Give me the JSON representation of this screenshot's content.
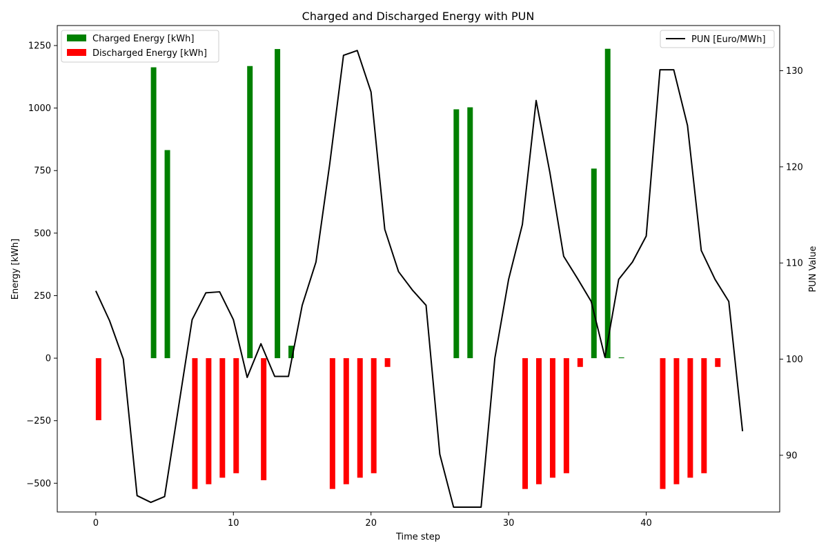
{
  "chart_data": {
    "type": "bar",
    "title": "Charged and Discharged Energy with PUN",
    "xlabel": "Time step",
    "ylabel": "Energy [kWh]",
    "ylabel_right": "PUN Value",
    "x": [
      0,
      1,
      2,
      3,
      4,
      5,
      6,
      7,
      8,
      9,
      10,
      11,
      12,
      13,
      14,
      15,
      16,
      17,
      18,
      19,
      20,
      21,
      22,
      23,
      24,
      25,
      26,
      27,
      28,
      29,
      30,
      31,
      32,
      33,
      34,
      35,
      36,
      37,
      38,
      39,
      40,
      41,
      42,
      43,
      44,
      45,
      46,
      47
    ],
    "xlim": [
      -2.8,
      49.7
    ],
    "ylim": [
      -615,
      1330
    ],
    "ylim_right": [
      84.1,
      134.7
    ],
    "xticks": [
      0,
      10,
      20,
      30,
      40
    ],
    "yticks": [
      -500,
      -250,
      0,
      250,
      500,
      750,
      1000,
      1250
    ],
    "yticks_right": [
      90,
      100,
      110,
      120,
      130
    ],
    "bar_series": [
      {
        "name": "Charged Energy [kWh]",
        "color": "#008000",
        "values": [
          0,
          0,
          0,
          0,
          1163,
          832,
          0,
          0,
          0,
          0,
          0,
          1168,
          0,
          1236,
          50,
          0,
          0,
          0,
          0,
          0,
          0,
          0,
          0,
          0,
          0,
          0,
          995,
          1003,
          0,
          0,
          0,
          0,
          0,
          0,
          0,
          0,
          758,
          1237,
          3,
          0,
          0,
          0,
          0,
          0,
          0,
          0,
          0,
          0
        ]
      },
      {
        "name": "Discharged Energy [kWh]",
        "color": "#ff0000",
        "values": [
          -248,
          0,
          0,
          0,
          0,
          0,
          0,
          -523,
          -504,
          -478,
          -460,
          0,
          -488,
          0,
          0,
          0,
          0,
          -523,
          -504,
          -478,
          -460,
          -35,
          0,
          0,
          0,
          0,
          0,
          0,
          0,
          0,
          0,
          -523,
          -504,
          -478,
          -460,
          -35,
          0,
          0,
          0,
          0,
          0,
          -523,
          -504,
          -478,
          -460,
          -35,
          0,
          0
        ]
      }
    ],
    "line_series": {
      "name": "PUN [Euro/MWh]",
      "color": "#000000",
      "values": [
        107.1,
        104.0,
        100.0,
        85.8,
        85.1,
        85.7,
        94.9,
        104.1,
        106.9,
        107.0,
        104.1,
        98.1,
        101.6,
        98.2,
        98.2,
        105.6,
        110.1,
        120.3,
        131.6,
        132.1,
        127.8,
        113.5,
        109.1,
        107.2,
        105.6,
        90.1,
        84.6,
        84.6,
        84.6,
        100.1,
        108.3,
        114.0,
        126.9,
        119.4,
        110.7,
        108.4,
        106.0,
        100.2,
        108.3,
        110.1,
        112.8,
        130.1,
        130.1,
        124.3,
        111.3,
        108.3,
        106.0,
        92.5
      ]
    },
    "legend_left": "top-left",
    "legend_right": "top-right",
    "grid": false
  }
}
